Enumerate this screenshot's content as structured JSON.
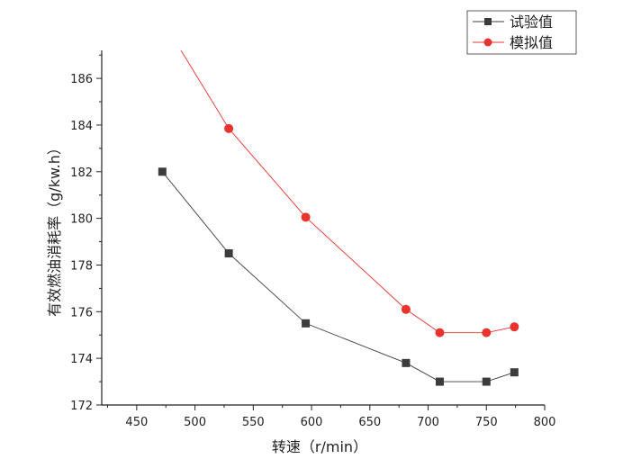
{
  "chart_data": {
    "type": "line",
    "xlabel": "转速（r/min）",
    "ylabel": "有效燃油消耗率（g/kw.h）",
    "xlim": [
      420,
      800
    ],
    "ylim": [
      172,
      187.2
    ],
    "xticks": [
      450,
      500,
      550,
      600,
      650,
      700,
      750,
      800
    ],
    "yticks": [
      172,
      174,
      176,
      178,
      180,
      182,
      184,
      186
    ],
    "grid": false,
    "legend_position": "top-right",
    "series": [
      {
        "name": "试验值",
        "marker": "square",
        "color": "#3c3c3c",
        "x": [
          472,
          529,
          595,
          681,
          710,
          750,
          774
        ],
        "y": [
          182.0,
          178.5,
          175.5,
          173.8,
          173.0,
          173.0,
          173.4
        ]
      },
      {
        "name": "模拟值",
        "marker": "circle",
        "color": "#e8332e",
        "x": [
          529,
          595,
          681,
          710,
          750,
          774
        ],
        "y": [
          183.85,
          180.05,
          176.1,
          175.1,
          175.1,
          175.35
        ],
        "line_start": [
          488,
          187.2
        ]
      }
    ]
  }
}
